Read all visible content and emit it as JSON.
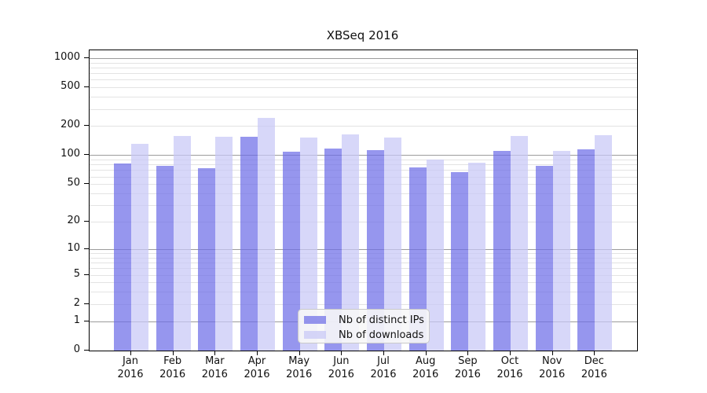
{
  "title": "XBSeq 2016",
  "y_axis": {
    "tick_labels": [
      "1000",
      "500",
      "200",
      "100",
      "50",
      "20",
      "10",
      "5",
      "2",
      "1",
      "0"
    ],
    "tick_values": [
      1000,
      500,
      200,
      100,
      50,
      20,
      10,
      5,
      2,
      1,
      0
    ]
  },
  "x_axis": {
    "months": [
      "Jan",
      "Feb",
      "Mar",
      "Apr",
      "May",
      "Jun",
      "Jul",
      "Aug",
      "Sep",
      "Oct",
      "Nov",
      "Dec"
    ],
    "year": "2016"
  },
  "legend": {
    "items": [
      {
        "label": "Nb of distinct IPs",
        "series_key": "ips"
      },
      {
        "label": "Nb of downloads",
        "series_key": "downloads"
      }
    ]
  },
  "colors": {
    "bar_ips": "rgba(110,110,232,0.72)",
    "bar_downloads": "rgba(200,200,246,0.72)",
    "grid_minor": "#e3e3e3",
    "grid_major": "#9c9c9c",
    "axis": "#000000",
    "legend_bg": "rgba(247,247,247,0.9)",
    "legend_border": "#c9c9c9"
  },
  "grid": {
    "minor_values": [
      2,
      3,
      4,
      5,
      6,
      7,
      8,
      9,
      20,
      30,
      40,
      50,
      60,
      70,
      80,
      90,
      200,
      300,
      400,
      500,
      600,
      700,
      800,
      900
    ],
    "major_values": [
      1,
      10,
      100,
      1000
    ]
  },
  "chart_data": {
    "type": "bar",
    "title": "XBSeq 2016",
    "categories": [
      "Jan 2016",
      "Feb 2016",
      "Mar 2016",
      "Apr 2016",
      "May 2016",
      "Jun 2016",
      "Jul 2016",
      "Aug 2016",
      "Sep 2016",
      "Oct 2016",
      "Nov 2016",
      "Dec 2016"
    ],
    "series": [
      {
        "name": "Nb of distinct IPs",
        "values": [
          82,
          77,
          74,
          156,
          109,
          117,
          113,
          75,
          67,
          111,
          78,
          115
        ]
      },
      {
        "name": "Nb of downloads",
        "values": [
          130,
          157,
          155,
          243,
          153,
          163,
          151,
          90,
          84,
          158,
          110,
          160
        ]
      }
    ],
    "yscale": "log1p",
    "ylim": [
      0,
      1200
    ],
    "y_ticks": [
      0,
      1,
      2,
      5,
      10,
      20,
      50,
      100,
      200,
      500,
      1000
    ],
    "grid": "on",
    "legend_position": "lower-center-inside"
  }
}
